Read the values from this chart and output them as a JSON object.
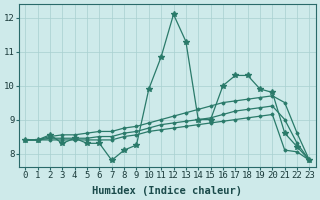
{
  "xlabel": "Humidex (Indice chaleur)",
  "x": [
    0,
    1,
    2,
    3,
    4,
    5,
    6,
    7,
    8,
    9,
    10,
    11,
    12,
    13,
    14,
    15,
    16,
    17,
    18,
    19,
    20,
    21,
    22,
    23
  ],
  "y_main": [
    8.4,
    8.4,
    8.55,
    8.3,
    8.45,
    8.3,
    8.3,
    7.8,
    8.1,
    8.25,
    9.9,
    10.85,
    12.1,
    11.3,
    9.0,
    9.0,
    10.0,
    10.3,
    10.3,
    9.9,
    9.8,
    8.6,
    8.2,
    7.8
  ],
  "y_line1": [
    8.4,
    8.4,
    8.4,
    8.4,
    8.4,
    8.4,
    8.4,
    8.4,
    8.5,
    8.55,
    8.65,
    8.7,
    8.75,
    8.8,
    8.85,
    8.9,
    8.95,
    9.0,
    9.05,
    9.1,
    9.15,
    8.1,
    8.05,
    7.8
  ],
  "y_line2": [
    8.4,
    8.4,
    8.45,
    8.45,
    8.45,
    8.45,
    8.5,
    8.5,
    8.6,
    8.65,
    8.75,
    8.85,
    8.9,
    8.95,
    9.0,
    9.05,
    9.15,
    9.25,
    9.3,
    9.35,
    9.4,
    9.0,
    8.3,
    7.8
  ],
  "y_line3": [
    8.4,
    8.4,
    8.5,
    8.55,
    8.55,
    8.6,
    8.65,
    8.65,
    8.75,
    8.8,
    8.9,
    9.0,
    9.1,
    9.2,
    9.3,
    9.4,
    9.5,
    9.55,
    9.6,
    9.65,
    9.7,
    9.5,
    8.6,
    7.8
  ],
  "line_color": "#2a7a6a",
  "bg_color": "#ceeaea",
  "grid_color": "#a8d0d0",
  "ylim": [
    7.6,
    12.4
  ],
  "xlim": [
    -0.5,
    23.5
  ],
  "yticks": [
    8,
    9,
    10,
    11,
    12
  ],
  "xticks": [
    0,
    1,
    2,
    3,
    4,
    5,
    6,
    7,
    8,
    9,
    10,
    11,
    12,
    13,
    14,
    15,
    16,
    17,
    18,
    19,
    20,
    21,
    22,
    23
  ],
  "tick_fontsize": 6.5,
  "label_fontsize": 7.5
}
